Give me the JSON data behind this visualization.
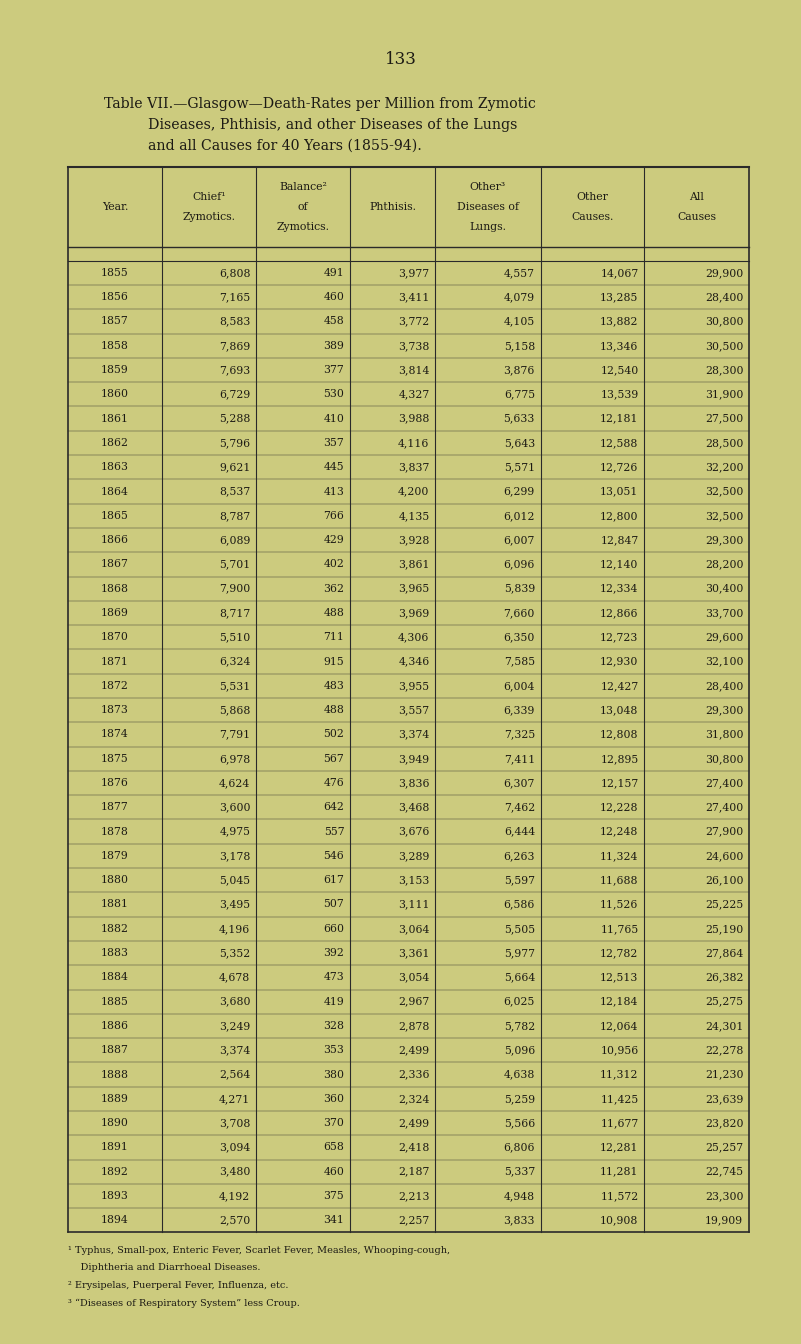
{
  "page_number": "133",
  "title_line1": "Table VII.—Glasgow—Death-Rates per Million from Zymotic",
  "title_line2": "Diseases, Phthisis, and other Diseases of the Lungs",
  "title_line3": "and all Causes for 40 Years (1855-94).",
  "col_headers_line1": [
    "Year.",
    "Chief¹",
    "Balance²",
    "Phthisis.",
    "Other³",
    "Other",
    "All"
  ],
  "col_headers_line2": [
    "",
    "Zymotics.",
    "of",
    "",
    "Diseases of",
    "Causes.",
    "Causes"
  ],
  "col_headers_line3": [
    "",
    "",
    "Zymotics.",
    "",
    "Lungs.",
    "",
    ""
  ],
  "footnote1": "¹ Typhus, Small-pox, Enteric Fever, Scarlet Fever, Measles, Whooping-cough,",
  "footnote1b": "    Diphtheria and Diarrhoeal Diseases.",
  "footnote2": "² Erysipelas, Puerperal Fever, Influenza, etc.",
  "footnote3": "³ “Diseases of Respiratory System” less Croup.",
  "rows": [
    [
      "1855",
      "6,808",
      "491",
      "3,977",
      "4,557",
      "14,067",
      "29,900"
    ],
    [
      "1856",
      "7,165",
      "460",
      "3,411",
      "4,079",
      "13,285",
      "28,400"
    ],
    [
      "1857",
      "8,583",
      "458",
      "3,772",
      "4,105",
      "13,882",
      "30,800"
    ],
    [
      "1858",
      "7,869",
      "389",
      "3,738",
      "5,158",
      "13,346",
      "30,500"
    ],
    [
      "1859",
      "7,693",
      "377",
      "3,814",
      "3,876",
      "12,540",
      "28,300"
    ],
    [
      "1860",
      "6,729",
      "530",
      "4,327",
      "6,775",
      "13,539",
      "31,900"
    ],
    [
      "1861",
      "5,288",
      "410",
      "3,988",
      "5,633",
      "12,181",
      "27,500"
    ],
    [
      "1862",
      "5,796",
      "357",
      "4,116",
      "5,643",
      "12,588",
      "28,500"
    ],
    [
      "1863",
      "9,621",
      "445",
      "3,837",
      "5,571",
      "12,726",
      "32,200"
    ],
    [
      "1864",
      "8,537",
      "413",
      "4,200",
      "6,299",
      "13,051",
      "32,500"
    ],
    [
      "1865",
      "8,787",
      "766",
      "4,135",
      "6,012",
      "12,800",
      "32,500"
    ],
    [
      "1866",
      "6,089",
      "429",
      "3,928",
      "6,007",
      "12,847",
      "29,300"
    ],
    [
      "1867",
      "5,701",
      "402",
      "3,861",
      "6,096",
      "12,140",
      "28,200"
    ],
    [
      "1868",
      "7,900",
      "362",
      "3,965",
      "5,839",
      "12,334",
      "30,400"
    ],
    [
      "1869",
      "8,717",
      "488",
      "3,969",
      "7,660",
      "12,866",
      "33,700"
    ],
    [
      "1870",
      "5,510",
      "711",
      "4,306",
      "6,350",
      "12,723",
      "29,600"
    ],
    [
      "1871",
      "6,324",
      "915",
      "4,346",
      "7,585",
      "12,930",
      "32,100"
    ],
    [
      "1872",
      "5,531",
      "483",
      "3,955",
      "6,004",
      "12,427",
      "28,400"
    ],
    [
      "1873",
      "5,868",
      "488",
      "3,557",
      "6,339",
      "13,048",
      "29,300"
    ],
    [
      "1874",
      "7,791",
      "502",
      "3,374",
      "7,325",
      "12,808",
      "31,800"
    ],
    [
      "1875",
      "6,978",
      "567",
      "3,949",
      "7,411",
      "12,895",
      "30,800"
    ],
    [
      "1876",
      "4,624",
      "476",
      "3,836",
      "6,307",
      "12,157",
      "27,400"
    ],
    [
      "1877",
      "3,600",
      "642",
      "3,468",
      "7,462",
      "12,228",
      "27,400"
    ],
    [
      "1878",
      "4,975",
      "557",
      "3,676",
      "6,444",
      "12,248",
      "27,900"
    ],
    [
      "1879",
      "3,178",
      "546",
      "3,289",
      "6,263",
      "11,324",
      "24,600"
    ],
    [
      "1880",
      "5,045",
      "617",
      "3,153",
      "5,597",
      "11,688",
      "26,100"
    ],
    [
      "1881",
      "3,495",
      "507",
      "3,111",
      "6,586",
      "11,526",
      "25,225"
    ],
    [
      "1882",
      "4,196",
      "660",
      "3,064",
      "5,505",
      "11,765",
      "25,190"
    ],
    [
      "1883",
      "5,352",
      "392",
      "3,361",
      "5,977",
      "12,782",
      "27,864"
    ],
    [
      "1884",
      "4,678",
      "473",
      "3,054",
      "5,664",
      "12,513",
      "26,382"
    ],
    [
      "1885",
      "3,680",
      "419",
      "2,967",
      "6,025",
      "12,184",
      "25,275"
    ],
    [
      "1886",
      "3,249",
      "328",
      "2,878",
      "5,782",
      "12,064",
      "24,301"
    ],
    [
      "1887",
      "3,374",
      "353",
      "2,499",
      "5,096",
      "10,956",
      "22,278"
    ],
    [
      "1888",
      "2,564",
      "380",
      "2,336",
      "4,638",
      "11,312",
      "21,230"
    ],
    [
      "1889",
      "4,271",
      "360",
      "2,324",
      "5,259",
      "11,425",
      "23,639"
    ],
    [
      "1890",
      "3,708",
      "370",
      "2,499",
      "5,566",
      "11,677",
      "23,820"
    ],
    [
      "1891",
      "3,094",
      "658",
      "2,418",
      "6,806",
      "12,281",
      "25,257"
    ],
    [
      "1892",
      "3,480",
      "460",
      "2,187",
      "5,337",
      "11,281",
      "22,745"
    ],
    [
      "1893",
      "4,192",
      "375",
      "2,213",
      "4,948",
      "11,572",
      "23,300"
    ],
    [
      "1894",
      "2,570",
      "341",
      "2,257",
      "3,833",
      "10,908",
      "19,909"
    ]
  ],
  "bg_color": "#cccb7e",
  "text_color": "#1c1a14",
  "line_color": "#2a2a2a"
}
